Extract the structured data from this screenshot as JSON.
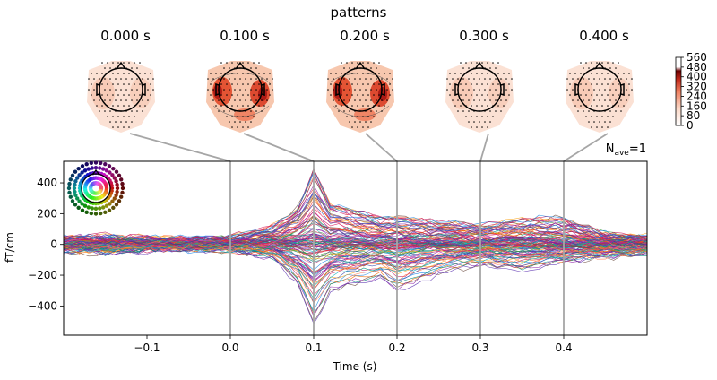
{
  "chart_data": {
    "type": "line",
    "title": "patterns",
    "xlabel": "Time (s)",
    "ylabel": "fT/cm",
    "xlim": [
      -0.2,
      0.5
    ],
    "ylim": [
      -590,
      540
    ],
    "xticks": [
      -0.1,
      0.0,
      0.1,
      0.2,
      0.3,
      0.4
    ],
    "xtick_labels": [
      "−0.1",
      "0.0",
      "0.1",
      "0.2",
      "0.3",
      "0.4"
    ],
    "yticks": [
      400,
      200,
      0,
      -200,
      -400
    ],
    "ytick_labels": [
      "400",
      "200",
      "0",
      "−200",
      "−400"
    ],
    "nave_label": "N",
    "nave_sub": "ave",
    "nave_value": "=1",
    "vlines": [
      0.0,
      0.1,
      0.2,
      0.3,
      0.4
    ],
    "topomaps": [
      {
        "label": "0.000 s",
        "time": 0.0
      },
      {
        "label": "0.100 s",
        "time": 0.1
      },
      {
        "label": "0.200 s",
        "time": 0.2
      },
      {
        "label": "0.300 s",
        "time": 0.3
      },
      {
        "label": "0.400 s",
        "time": 0.4
      }
    ],
    "colorbar": {
      "min": 0,
      "max": 560,
      "ticks": [
        "560",
        "480",
        "400",
        "320",
        "240",
        "160",
        "80",
        "0"
      ]
    },
    "series_description": "204 gradiometer channels, butterfly plot, spatially colored",
    "envelope": {
      "time": [
        -0.2,
        -0.15,
        -0.1,
        -0.05,
        0.0,
        0.05,
        0.08,
        0.1,
        0.12,
        0.15,
        0.18,
        0.2,
        0.25,
        0.3,
        0.35,
        0.4,
        0.45,
        0.5
      ],
      "upper": [
        50,
        55,
        40,
        40,
        45,
        110,
        230,
        490,
        260,
        220,
        170,
        175,
        150,
        120,
        160,
        170,
        70,
        50
      ],
      "lower": [
        -50,
        -60,
        -40,
        -40,
        -45,
        -90,
        -260,
        -540,
        -320,
        -260,
        -230,
        -310,
        -190,
        -140,
        -170,
        -120,
        -90,
        -60
      ]
    }
  }
}
